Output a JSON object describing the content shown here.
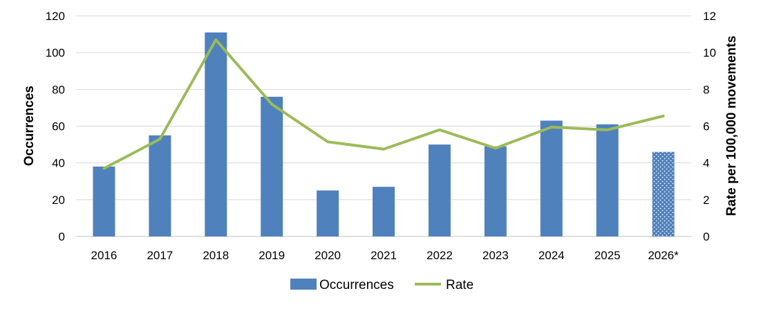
{
  "chart_data": {
    "type": "bar",
    "categories": [
      "2016",
      "2017",
      "2018",
      "2019",
      "2020",
      "2021",
      "2022",
      "2023",
      "2024",
      "2025",
      "2026*"
    ],
    "series": [
      {
        "name": "Occurrences",
        "type": "bar",
        "axis": "left",
        "values": [
          38,
          55,
          111,
          76,
          25,
          27,
          50,
          49,
          63,
          61,
          46
        ],
        "color": "#4f81bd",
        "patterned_categories": [
          "2026*"
        ]
      },
      {
        "name": "Rate",
        "type": "line",
        "axis": "right",
        "values": [
          3.7,
          5.3,
          10.7,
          7.2,
          5.15,
          4.75,
          5.8,
          4.8,
          5.95,
          5.8,
          6.55
        ],
        "color": "#9bbb59"
      }
    ],
    "ylabel": "Occurrences",
    "ylim": [
      0,
      120
    ],
    "yticks": [
      "0",
      "20",
      "40",
      "60",
      "80",
      "100",
      "120"
    ],
    "y2label": "Rate per 100,000 movements",
    "y2lim": [
      0,
      12
    ],
    "y2ticks": [
      "0",
      "2",
      "4",
      "6",
      "8",
      "10",
      "12"
    ],
    "grid": true,
    "legend_position": "bottom"
  }
}
